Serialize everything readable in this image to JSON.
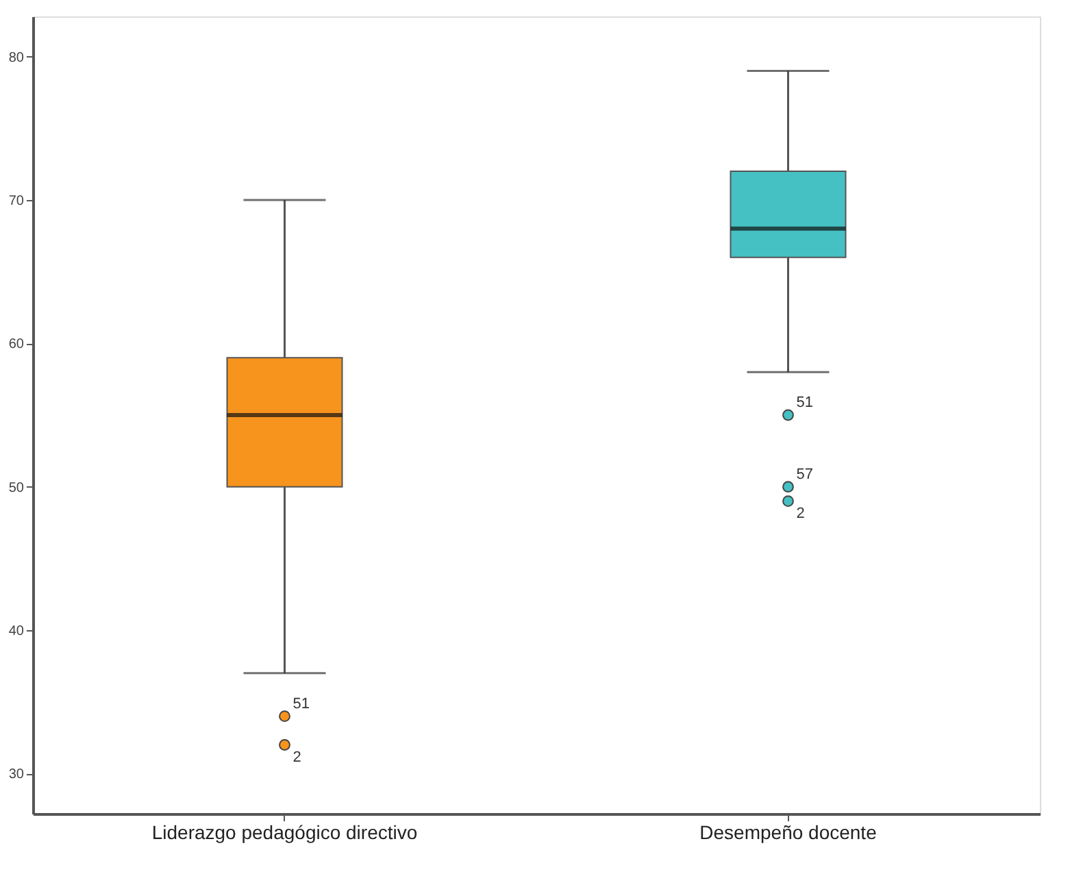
{
  "chart_data": {
    "type": "box",
    "categories": [
      "Liderazgo pedagógico directivo",
      "Desempeño docente"
    ],
    "colors": [
      "#f7941d",
      "#45c1c4"
    ],
    "boxes": [
      {
        "low": 37,
        "q1": 50,
        "median": 55,
        "q3": 59,
        "high": 70,
        "outliers": [
          34,
          32
        ]
      },
      {
        "low": 58,
        "q1": 66,
        "median": 68,
        "q3": 72,
        "high": 79,
        "outliers": [
          55,
          50,
          49
        ]
      }
    ],
    "ylim": [
      27.2,
      82.8
    ],
    "yticks": [
      30,
      40,
      50,
      60,
      70,
      80
    ],
    "grid": false,
    "annotations": [
      "51",
      "2",
      "51",
      "57",
      "2"
    ]
  }
}
